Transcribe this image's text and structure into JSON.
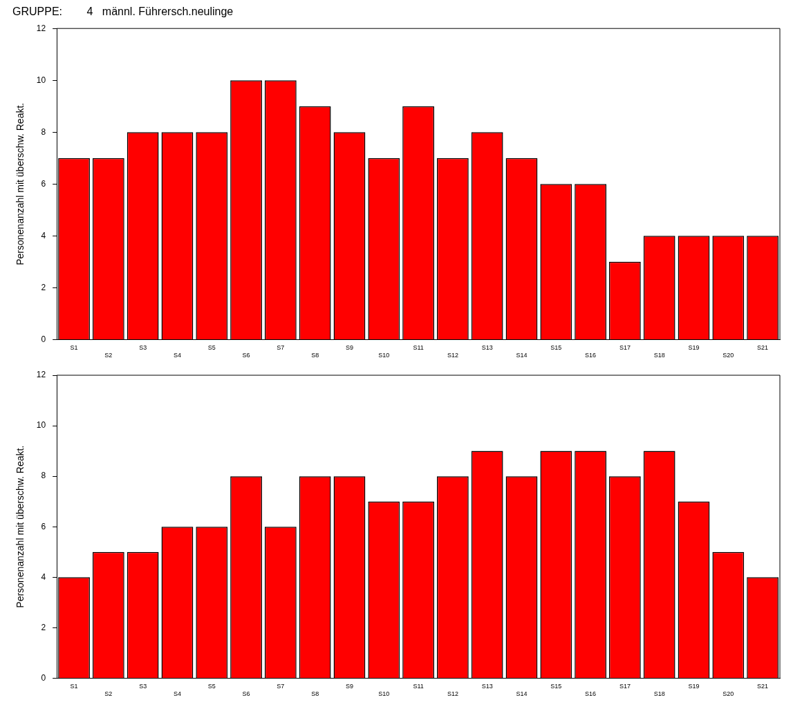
{
  "chart_data": [
    {
      "type": "bar",
      "title": "GRUPPE:        4   männl. Führersch.neulinge",
      "ylabel": "Personenanzahl mit überschw. Reakt.",
      "categories": [
        "S1",
        "S2",
        "S3",
        "S4",
        "S5",
        "S6",
        "S7",
        "S8",
        "S9",
        "S10",
        "S11",
        "S12",
        "S13",
        "S14",
        "S15",
        "S16",
        "S17",
        "S18",
        "S19",
        "S20",
        "S21"
      ],
      "values": [
        7,
        7,
        8,
        8,
        8,
        10,
        10,
        9,
        8,
        7,
        9,
        7,
        8,
        7,
        6,
        6,
        3,
        4,
        4,
        4,
        4
      ],
      "color": "#ff0000",
      "ylim": [
        0,
        12
      ],
      "yticks": [
        0,
        2,
        4,
        6,
        8,
        10,
        12
      ],
      "grid": false,
      "legend": false
    },
    {
      "type": "bar",
      "ylabel": "Personenanzahl mit überschw. Reakt.",
      "categories": [
        "S1",
        "S2",
        "S3",
        "S4",
        "S5",
        "S6",
        "S7",
        "S8",
        "S9",
        "S10",
        "S11",
        "S12",
        "S13",
        "S14",
        "S15",
        "S16",
        "S17",
        "S18",
        "S19",
        "S20",
        "S21"
      ],
      "values": [
        4,
        5,
        5,
        6,
        6,
        8,
        6,
        8,
        8,
        7,
        7,
        8,
        9,
        8,
        9,
        9,
        8,
        9,
        7,
        5,
        4
      ],
      "color": "#ff0000",
      "ylim": [
        0,
        12
      ],
      "yticks": [
        0,
        2,
        4,
        6,
        8,
        10,
        12
      ],
      "grid": false,
      "legend": false
    }
  ]
}
